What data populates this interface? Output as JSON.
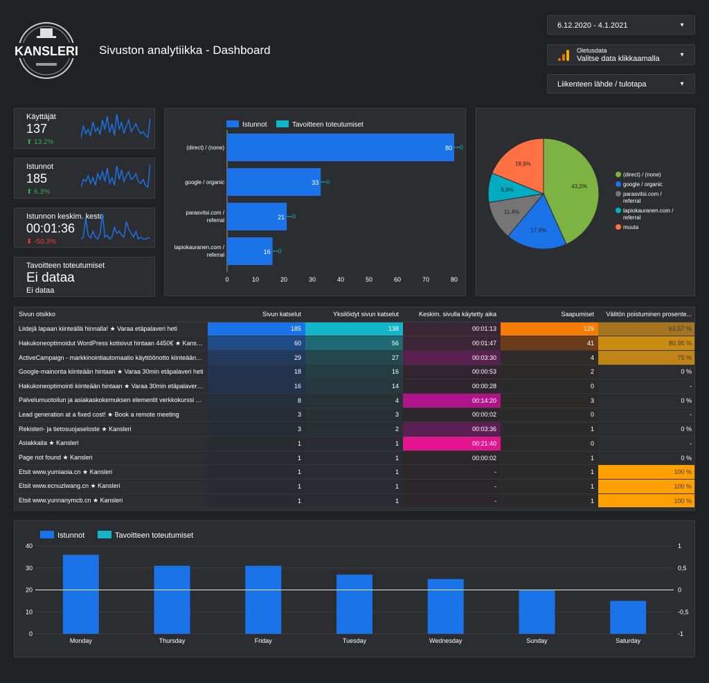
{
  "header": {
    "logo_text": "KANSLERI",
    "title": "Sivuston analytiikka - Dashboard"
  },
  "controls": {
    "date_range": "6.12.2020 - 4.1.2021",
    "data_source_label": "Oletusdata",
    "data_source_value": "Valitse data klikkaamalla",
    "dimension_filter": "Liikenteen lähde / tulotapa"
  },
  "kpis": [
    {
      "label": "Käyttäjät",
      "value": "137",
      "delta": "13.2%",
      "direction": "up",
      "spark": [
        5,
        18,
        10,
        14,
        8,
        22,
        12,
        16,
        9,
        24,
        14,
        28,
        11,
        20,
        8,
        30,
        14,
        22,
        10,
        18,
        24,
        12,
        16,
        20,
        14,
        10,
        12,
        8,
        6,
        26
      ]
    },
    {
      "label": "Istunnot",
      "value": "185",
      "delta": "6.3%",
      "direction": "up",
      "spark": [
        6,
        14,
        12,
        18,
        10,
        16,
        8,
        20,
        14,
        22,
        12,
        26,
        10,
        16,
        8,
        28,
        14,
        24,
        12,
        18,
        22,
        14,
        16,
        20,
        12,
        10,
        14,
        8,
        6,
        30
      ]
    },
    {
      "label": "Istunnon keskim. kesto",
      "value": "00:01:36",
      "delta": "-50.3%",
      "direction": "down",
      "spark": [
        4,
        6,
        26,
        8,
        5,
        12,
        6,
        4,
        10,
        30,
        6,
        8,
        4,
        6,
        16,
        10,
        12,
        8,
        6,
        22,
        14,
        10,
        6,
        12,
        4,
        6,
        4,
        4,
        5,
        5
      ]
    },
    {
      "label": "Tavoitteen toteutumiset",
      "value": "Ei dataa",
      "sub": "Ei dataa"
    }
  ],
  "chart_data": [
    {
      "type": "bar",
      "orientation": "horizontal",
      "categories": [
        "(direct) / (none)",
        "google / organic",
        "parasvitsi.com / referral",
        "tapiokauranen.com / referral"
      ],
      "series": [
        {
          "name": "Istunnot",
          "values": [
            80,
            33,
            21,
            16
          ],
          "color": "#1a73e8"
        },
        {
          "name": "Tavoitteen toteutumiset",
          "values": [
            0,
            0,
            0,
            0
          ],
          "color": "#12b5cb"
        }
      ],
      "xlim": [
        0,
        80
      ],
      "xticks": [
        0,
        10,
        20,
        30,
        40,
        50,
        60,
        70,
        80
      ]
    },
    {
      "type": "pie",
      "labels": [
        "(direct) / (none)",
        "google / organic",
        "parasvitsi.com / referral",
        "tapiokauranen.com / referral",
        "muuta"
      ],
      "values": [
        43.2,
        17.8,
        11.4,
        8.6,
        18.9
      ],
      "value_labels": [
        "43,2%",
        "17,8%",
        "11,4%",
        "8,6%",
        "18,9%"
      ],
      "colors": [
        "#7cb342",
        "#1a73e8",
        "#757575",
        "#00acc1",
        "#ff7043"
      ]
    },
    {
      "type": "bar",
      "categories": [
        "Monday",
        "Thursday",
        "Friday",
        "Tuesday",
        "Wednesday",
        "Sunday",
        "Saturday"
      ],
      "series": [
        {
          "name": "Istunnot",
          "values": [
            36,
            31,
            31,
            27,
            25,
            20,
            15
          ],
          "color": "#1a73e8"
        },
        {
          "name": "Tavoitteen toteutumiset",
          "values": [
            0,
            0,
            0,
            0,
            0,
            0,
            0
          ],
          "color": "#12b5cb"
        }
      ],
      "ylim": [
        0,
        40
      ],
      "yticks": [
        0,
        10,
        20,
        30,
        40
      ],
      "y2lim": [
        -1,
        1
      ],
      "y2ticks": [
        "1",
        "0,5",
        "0",
        "-0,5",
        "-1"
      ]
    }
  ],
  "table": {
    "columns": [
      "Sivun otsikko",
      "Sivun katselut",
      "Yksilöidyt sivun katselut",
      "Keskim. sivulla käytetty aika",
      "Saapumiset",
      "Välitön poistuminen prosente..."
    ],
    "rows": [
      [
        "Liidejä lapaan kiinteällä hinnalla! ★ Varaa etäpalaveri heti",
        "185",
        "138",
        "00:01:13",
        "129",
        "63,57 %"
      ],
      [
        "Hakukoneoptimoidut WordPress kotisivut hintaan 4450€ ★ Kansleri",
        "60",
        "56",
        "00:01:47",
        "41",
        "80,95 %"
      ],
      [
        "ActiveCampaign - markkinointiautomaatio käyttöönotto kiinteään h...",
        "29",
        "27",
        "00:03:30",
        "4",
        "75 %"
      ],
      [
        "Google-mainonta kiinteään hintaan ★ Varaa 30min etäpalaveri heti",
        "18",
        "16",
        "00:00:53",
        "2",
        "0 %"
      ],
      [
        "Hakukoneoptimointi kiinteään hintaan ★ Varaa 30min etäpalaveri h...",
        "16",
        "14",
        "00:00:28",
        "0",
        "-"
      ],
      [
        "Palvelumuotoilun ja asiakaskokemuksen elementit verkkokurssi ★ K...",
        "8",
        "4",
        "00:14:20",
        "3",
        "0 %"
      ],
      [
        "Lead generation at a fixed cost! ★ Book a remote meeting",
        "3",
        "3",
        "00:00:02",
        "0",
        "-"
      ],
      [
        "Rekisteri- ja tietosuojaseloste ★ Kansleri",
        "3",
        "2",
        "00:03:36",
        "1",
        "0 %"
      ],
      [
        "Asiakkaita ★ Kansleri",
        "1",
        "1",
        "00:21:40",
        "0",
        "-"
      ],
      [
        "Page not found ★ Kansleri",
        "1",
        "1",
        "00:00:02",
        "1",
        "0 %"
      ],
      [
        "Etsit www.yumiaoia.cn ★ Kansleri",
        "1",
        "1",
        "-",
        "1",
        "100 %"
      ],
      [
        "Etsit www.ecnuzlwang.cn ★ Kansleri",
        "1",
        "1",
        "-",
        "1",
        "100 %"
      ],
      [
        "Etsit www.yunnanymcb.cn ★ Kansleri",
        "1",
        "1",
        "-",
        "1",
        "100 %"
      ]
    ],
    "heat_colors": {
      "views": [
        "#1a73e8",
        "#1f4a86",
        "#233a5e",
        "#23344f",
        "#23334c",
        "#262f3d",
        "#282c34",
        "#282c34",
        "#282b30",
        "#282b30",
        "#282b30",
        "#282b30",
        "#282b30"
      ],
      "unique": [
        "#12b5cb",
        "#1f6a73",
        "#23494f",
        "#243d42",
        "#253a3e",
        "#273236",
        "#283034",
        "#283034",
        "#292d31",
        "#292d31",
        "#292d31",
        "#292d31",
        "#292d31"
      ],
      "time": [
        "#3a2535",
        "#3c2537",
        "#5a2050",
        "#32252f",
        "#2e262c",
        "#b0148a",
        "#2b272b",
        "#5c1f53",
        "#e3148f",
        "#2b272b",
        "#2b272b",
        "#2b272b",
        "#2b272b"
      ],
      "arrivals": [
        "#f57c00",
        "#6b3d1a",
        "#2e2b29",
        "#2c2b2a",
        "#2b2b2b",
        "#2c2b2a",
        "#2b2b2b",
        "#2b2b2b",
        "#2b2b2b",
        "#2b2b2b",
        "#2b2b2b",
        "#2b2b2b",
        "#2b2b2b"
      ],
      "bounce": [
        "#a5741f",
        "#c98a12",
        "#c08516",
        "#2c2d31",
        "#2c2d31",
        "#2c2d31",
        "#2c2d31",
        "#2c2d31",
        "#2c2d31",
        "#2c2d31",
        "#ffa000",
        "#ffa000",
        "#ffa000"
      ]
    }
  }
}
